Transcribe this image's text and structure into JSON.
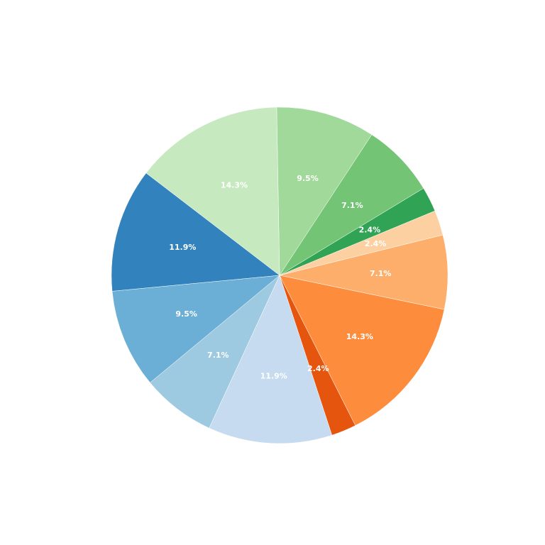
{
  "chart_data": {
    "type": "pie",
    "start_angle_deg": 91,
    "direction": "clockwise",
    "legend": "none",
    "slices": [
      {
        "value": 9.5,
        "label": "9.5%",
        "color": "#a1d99b"
      },
      {
        "value": 7.1,
        "label": "7.1%",
        "color": "#74c476"
      },
      {
        "value": 2.4,
        "label": "2.4%",
        "color": "#31a354"
      },
      {
        "value": 2.4,
        "label": "2.4%",
        "color": "#fdd0a2"
      },
      {
        "value": 7.1,
        "label": "7.1%",
        "color": "#fdae6b"
      },
      {
        "value": 14.3,
        "label": "14.3%",
        "color": "#fd8d3c"
      },
      {
        "value": 2.4,
        "label": "2.4%",
        "color": "#e6550d"
      },
      {
        "value": 11.9,
        "label": "11.9%",
        "color": "#c6dbef"
      },
      {
        "value": 7.1,
        "label": "7.1%",
        "color": "#9ecae1"
      },
      {
        "value": 9.5,
        "label": "9.5%",
        "color": "#6baed6"
      },
      {
        "value": 11.9,
        "label": "11.9%",
        "color": "#3182bd"
      },
      {
        "value": 14.3,
        "label": "14.3%",
        "color": "#c7e9c0"
      }
    ]
  }
}
